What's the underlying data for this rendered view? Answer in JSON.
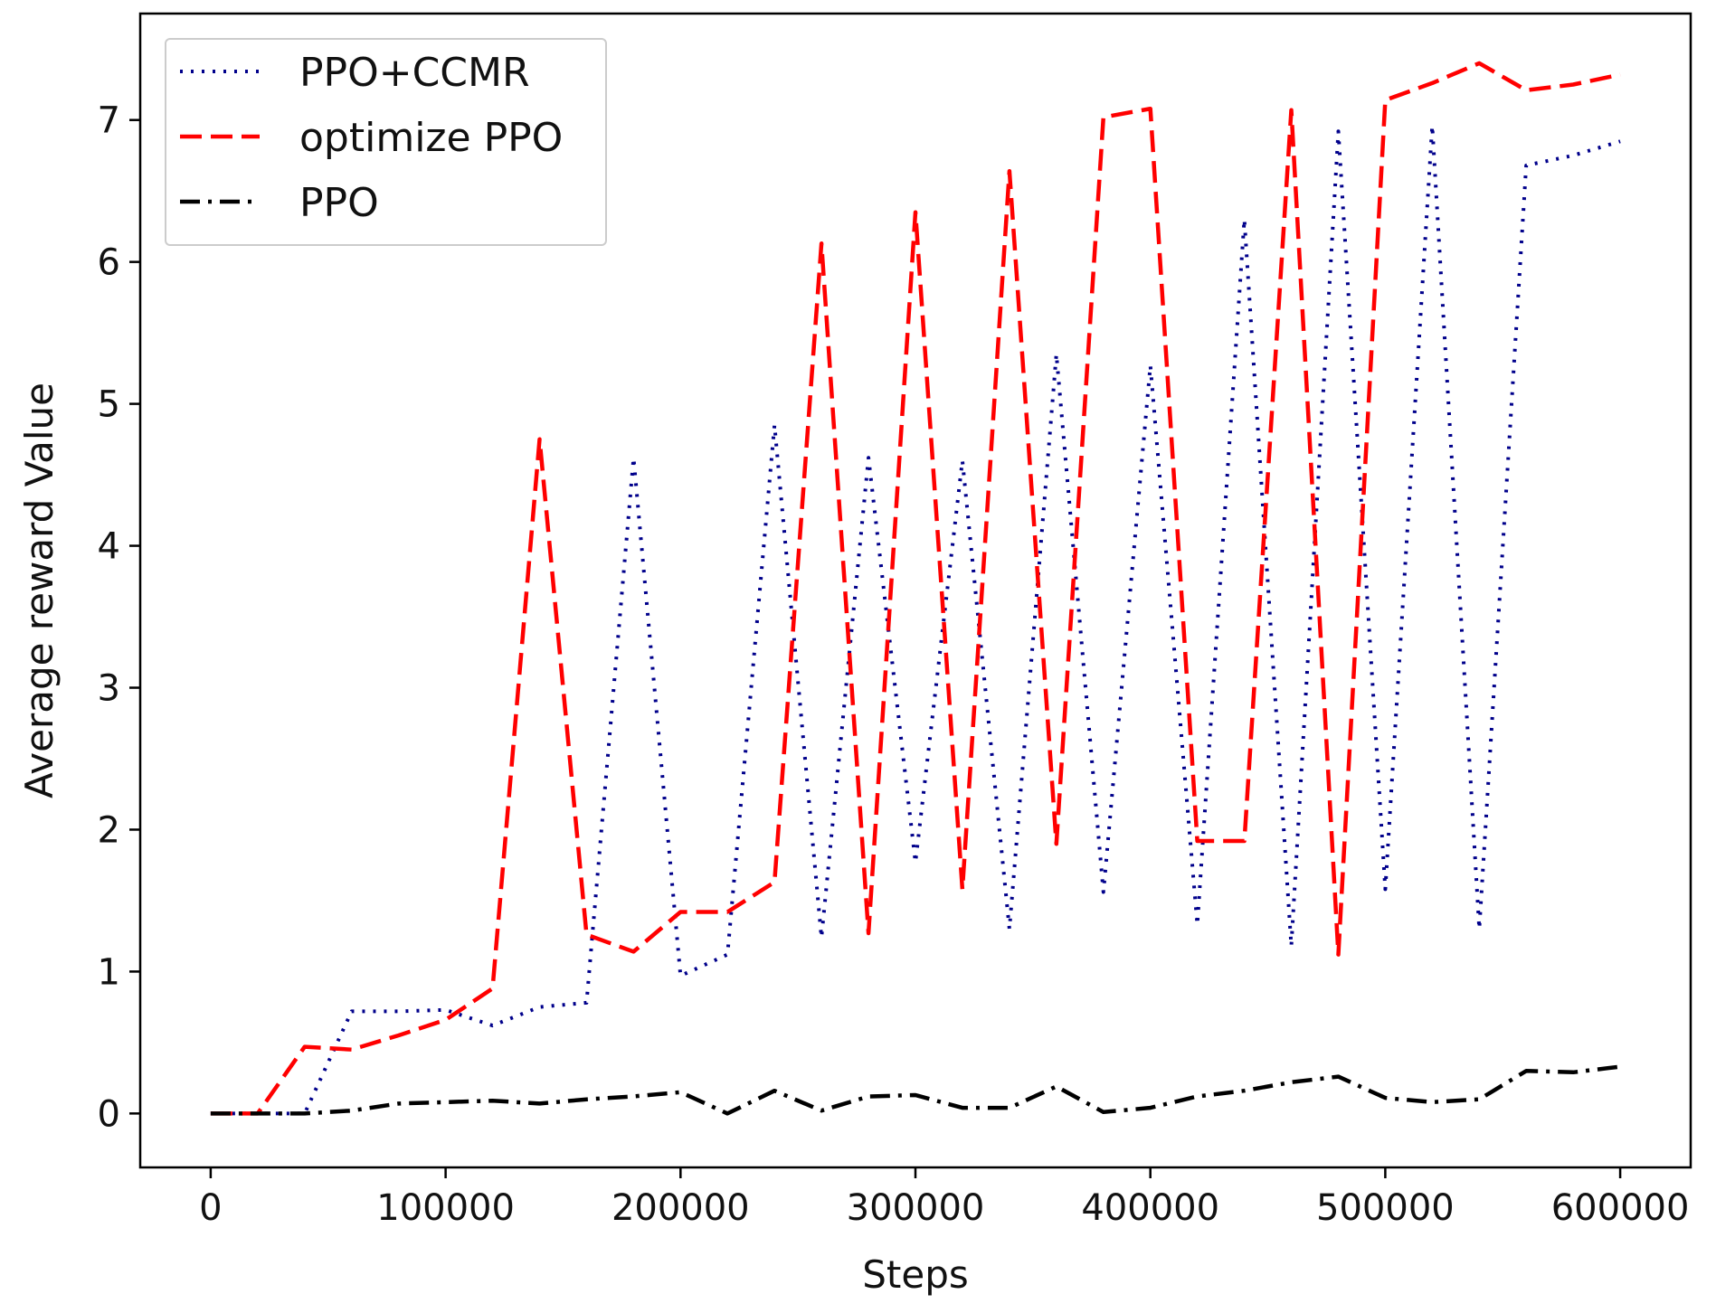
{
  "chart_data": {
    "type": "line",
    "title": "",
    "xlabel": "Steps",
    "ylabel": "Average reward Value",
    "xlim": [
      -30000,
      630000
    ],
    "ylim": [
      -0.38,
      7.75
    ],
    "xticks": [
      0,
      100000,
      200000,
      300000,
      400000,
      500000,
      600000
    ],
    "xtick_labels": [
      "0",
      "100000",
      "200000",
      "300000",
      "400000",
      "500000",
      "600000"
    ],
    "yticks": [
      0,
      1,
      2,
      3,
      4,
      5,
      6,
      7
    ],
    "ytick_labels": [
      "0",
      "1",
      "2",
      "3",
      "4",
      "5",
      "6",
      "7"
    ],
    "legend_position": "top-left",
    "x": [
      0,
      20000,
      40000,
      60000,
      80000,
      100000,
      120000,
      140000,
      160000,
      180000,
      200000,
      220000,
      240000,
      260000,
      280000,
      300000,
      320000,
      340000,
      360000,
      380000,
      400000,
      420000,
      440000,
      460000,
      480000,
      500000,
      520000,
      540000,
      560000,
      580000,
      600000
    ],
    "series": [
      {
        "name": "PPO+CCMR",
        "color": "#00008b",
        "style": "dotted",
        "values": [
          0,
          0,
          0,
          0.72,
          0.72,
          0.73,
          0.62,
          0.75,
          0.78,
          4.62,
          0.97,
          1.12,
          4.85,
          1.24,
          4.62,
          1.77,
          4.6,
          1.3,
          5.35,
          1.56,
          5.27,
          1.33,
          6.3,
          1.18,
          6.92,
          1.58,
          6.96,
          1.3,
          6.68,
          6.75,
          6.85
        ]
      },
      {
        "name": "optimize PPO",
        "color": "#ff0000",
        "style": "dashed",
        "values": [
          0,
          0,
          0.47,
          0.45,
          0.55,
          0.66,
          0.88,
          4.75,
          1.26,
          1.14,
          1.42,
          1.42,
          1.63,
          6.13,
          1.27,
          6.35,
          1.58,
          6.64,
          1.9,
          7.02,
          7.08,
          1.92,
          1.92,
          7.07,
          1.12,
          7.14,
          7.26,
          7.4,
          7.21,
          7.25,
          7.32
        ]
      },
      {
        "name": "PPO",
        "color": "#000000",
        "style": "dashdot",
        "values": [
          0,
          0,
          0,
          0.02,
          0.07,
          0.08,
          0.09,
          0.07,
          0.1,
          0.12,
          0.15,
          0,
          0.16,
          0.02,
          0.12,
          0.13,
          0.04,
          0.04,
          0.19,
          0.01,
          0.04,
          0.12,
          0.16,
          0.22,
          0.26,
          0.11,
          0.08,
          0.1,
          0.3,
          0.29,
          0.33
        ]
      }
    ]
  }
}
